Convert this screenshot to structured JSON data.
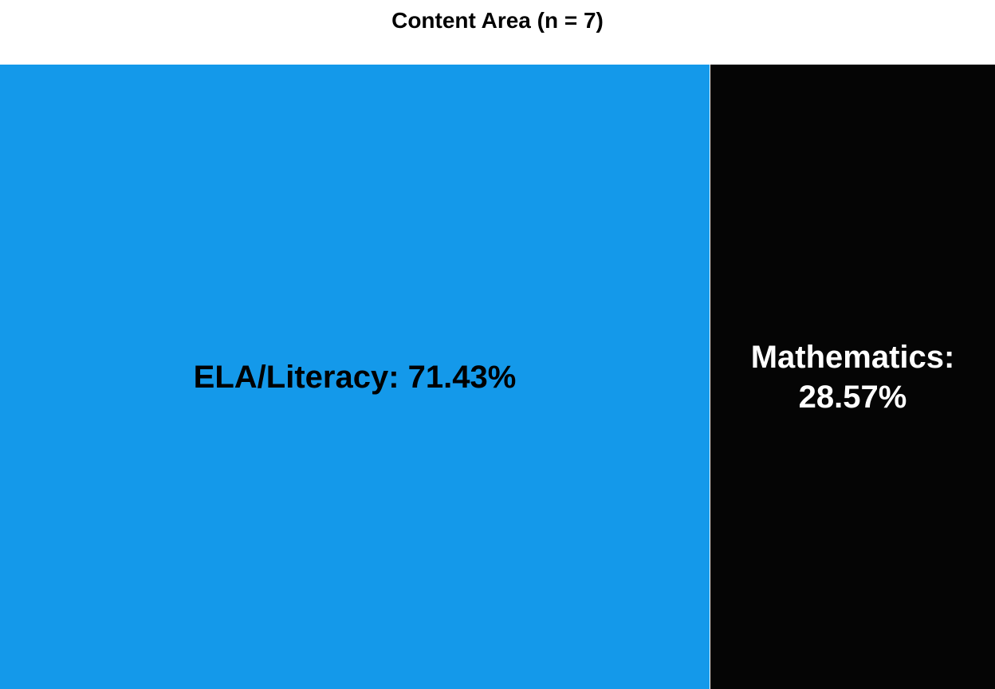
{
  "chart_data": {
    "type": "treemap",
    "title": "Content Area (n = 7)",
    "categories": [
      "ELA/Literacy",
      "Mathematics"
    ],
    "values": [
      71.43,
      28.57
    ],
    "value_unit": "%",
    "labels": [
      "ELA/Literacy: 71.43%",
      "Mathematics: 28.57%"
    ],
    "colors": [
      "#1499EA",
      "#050505"
    ],
    "label_colors": [
      "#000000",
      "#ffffff"
    ],
    "legend": "none",
    "grid": false
  }
}
